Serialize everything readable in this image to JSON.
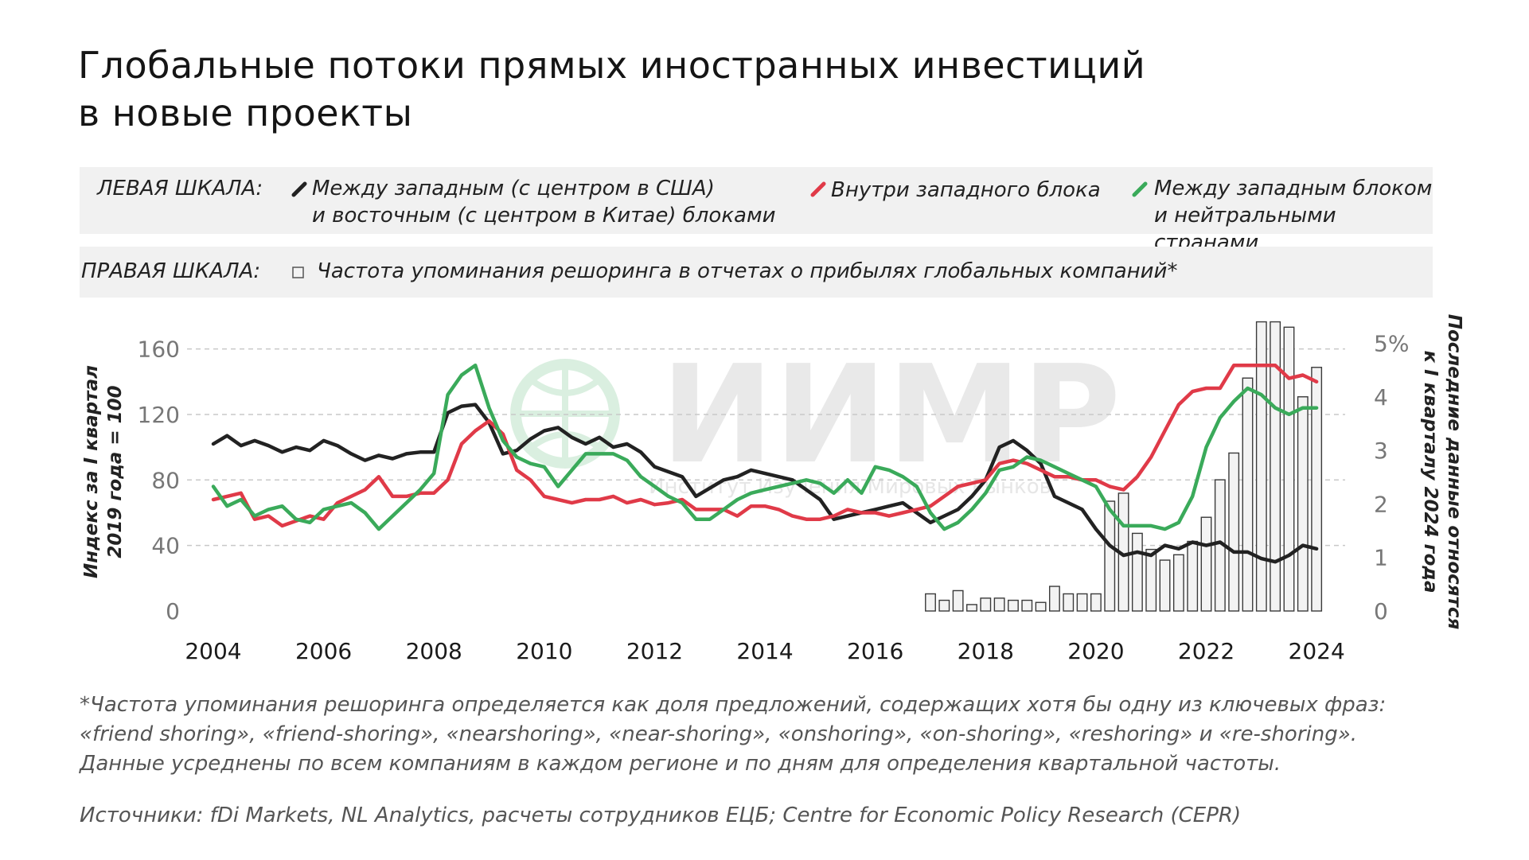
{
  "title": {
    "line1": "Глобальные потоки прямых иностранных инвестиций",
    "line2": "в новые проекты"
  },
  "legend": {
    "left_scale_label": "ЛЕВАЯ ШКАЛА:",
    "right_scale_label": "ПРАВАЯ ШКАЛА:",
    "items": [
      {
        "line1": "Между западным (с центром в США)",
        "line2": "и восточным (с центром в Китае) блоками",
        "color": "#222222"
      },
      {
        "line1": "Внутри западного блока",
        "line2": "",
        "color": "#e03a48"
      },
      {
        "line1": "Между западным блоком",
        "line2": "и нейтральными странами",
        "color": "#3aaa5a"
      }
    ],
    "bar_item": "Частота упоминания решоринга в отчетах о прибылях глобальных компаний*"
  },
  "watermark": {
    "text": "ИИМР",
    "subtext": "Институт Изучения Мировых Рынков"
  },
  "footnote": {
    "line1": "*Частота упоминания решоринга определяется как доля предложений, содержащих хотя бы одну из ключевых фраз:",
    "line2": "«friend shoring», «friend-shoring», «nearshoring», «near-shoring», «onshoring», «on-shoring», «reshoring» и «re-shoring».",
    "line3": "Данные усреднены по всем компаниям в каждом регионе и по дням для определения квартальной частоты."
  },
  "source": "Источники: fDi Markets, NL Analytics, расчеты сотрудников ЕЦБ; Centre for Economic Policy Research (CEPR)",
  "chart_data": {
    "type": "line",
    "x_ticks": [
      "2004",
      "2006",
      "2008",
      "2010",
      "2012",
      "2014",
      "2016",
      "2018",
      "2020",
      "2022",
      "2024"
    ],
    "xlim": [
      2004,
      2024.2
    ],
    "ylabel": "Индекс за I квартал 2019 года = 100",
    "ylim": [
      0,
      170
    ],
    "y_ticks": [
      0,
      40,
      80,
      120,
      160
    ],
    "y2label": "Последние данные относятся к I кварталу 2024 года",
    "y2lim": [
      0,
      5.2
    ],
    "y2_ticks": [
      "0",
      "1",
      "2",
      "3",
      "4",
      "5%"
    ],
    "grid": "horizontal-dashed",
    "series": [
      {
        "name": "Между западным (с центром в США) и восточным (с центром в Китае) блоками",
        "color": "#222222",
        "x": [
          2004,
          2004.25,
          2004.5,
          2004.75,
          2005,
          2005.25,
          2005.5,
          2005.75,
          2006,
          2006.25,
          2006.5,
          2006.75,
          2007,
          2007.25,
          2007.5,
          2007.75,
          2008,
          2008.25,
          2008.5,
          2008.75,
          2009,
          2009.25,
          2009.5,
          2009.75,
          2010,
          2010.25,
          2010.5,
          2010.75,
          2011,
          2011.25,
          2011.5,
          2011.75,
          2012,
          2012.25,
          2012.5,
          2012.75,
          2013,
          2013.25,
          2013.5,
          2013.75,
          2014,
          2014.25,
          2014.5,
          2014.75,
          2015,
          2015.25,
          2015.5,
          2015.75,
          2016,
          2016.25,
          2016.5,
          2016.75,
          2017,
          2017.25,
          2017.5,
          2017.75,
          2018,
          2018.25,
          2018.5,
          2018.75,
          2019,
          2019.25,
          2019.5,
          2019.75,
          2020,
          2020.25,
          2020.5,
          2020.75,
          2021,
          2021.25,
          2021.5,
          2021.75,
          2022,
          2022.25,
          2022.5,
          2022.75,
          2023,
          2023.25,
          2023.5,
          2023.75,
          2024
        ],
        "values": [
          102,
          107,
          101,
          104,
          101,
          97,
          100,
          98,
          104,
          101,
          96,
          92,
          95,
          93,
          96,
          97,
          97,
          121,
          125,
          126,
          115,
          96,
          98,
          105,
          110,
          112,
          106,
          102,
          106,
          100,
          102,
          97,
          88,
          85,
          82,
          70,
          75,
          80,
          82,
          86,
          84,
          82,
          80,
          74,
          68,
          56,
          58,
          60,
          62,
          64,
          66,
          60,
          54,
          58,
          62,
          70,
          80,
          100,
          104,
          98,
          90,
          70,
          66,
          62,
          50,
          40,
          34,
          36,
          34,
          40,
          38,
          42,
          40,
          42,
          36,
          36,
          32,
          30,
          34,
          40,
          38
        ]
      },
      {
        "name": "Внутри западного блока",
        "color": "#e03a48",
        "x": [
          2004,
          2004.25,
          2004.5,
          2004.75,
          2005,
          2005.25,
          2005.5,
          2005.75,
          2006,
          2006.25,
          2006.5,
          2006.75,
          2007,
          2007.25,
          2007.5,
          2007.75,
          2008,
          2008.25,
          2008.5,
          2008.75,
          2009,
          2009.25,
          2009.5,
          2009.75,
          2010,
          2010.25,
          2010.5,
          2010.75,
          2011,
          2011.25,
          2011.5,
          2011.75,
          2012,
          2012.25,
          2012.5,
          2012.75,
          2013,
          2013.25,
          2013.5,
          2013.75,
          2014,
          2014.25,
          2014.5,
          2014.75,
          2015,
          2015.25,
          2015.5,
          2015.75,
          2016,
          2016.25,
          2016.5,
          2016.75,
          2017,
          2017.25,
          2017.5,
          2017.75,
          2018,
          2018.25,
          2018.5,
          2018.75,
          2019,
          2019.25,
          2019.5,
          2019.75,
          2020,
          2020.25,
          2020.5,
          2020.75,
          2021,
          2021.25,
          2021.5,
          2021.75,
          2022,
          2022.25,
          2022.5,
          2022.75,
          2023,
          2023.25,
          2023.5,
          2023.75,
          2024
        ],
        "values": [
          68,
          70,
          72,
          56,
          58,
          52,
          55,
          58,
          56,
          66,
          70,
          74,
          82,
          70,
          70,
          72,
          72,
          80,
          102,
          110,
          116,
          108,
          86,
          80,
          70,
          68,
          66,
          68,
          68,
          70,
          66,
          68,
          65,
          66,
          68,
          62,
          62,
          62,
          58,
          64,
          64,
          62,
          58,
          56,
          56,
          58,
          62,
          60,
          60,
          58,
          60,
          62,
          64,
          70,
          76,
          78,
          80,
          90,
          92,
          90,
          86,
          82,
          82,
          80,
          80,
          76,
          74,
          82,
          94,
          110,
          126,
          134,
          136,
          136,
          150,
          150,
          150,
          150,
          142,
          144,
          140
        ]
      },
      {
        "name": "Между западным блоком и нейтральными странами",
        "color": "#3aaa5a",
        "x": [
          2004,
          2004.25,
          2004.5,
          2004.75,
          2005,
          2005.25,
          2005.5,
          2005.75,
          2006,
          2006.25,
          2006.5,
          2006.75,
          2007,
          2007.25,
          2007.5,
          2007.75,
          2008,
          2008.25,
          2008.5,
          2008.75,
          2009,
          2009.25,
          2009.5,
          2009.75,
          2010,
          2010.25,
          2010.5,
          2010.75,
          2011,
          2011.25,
          2011.5,
          2011.75,
          2012,
          2012.25,
          2012.5,
          2012.75,
          2013,
          2013.25,
          2013.5,
          2013.75,
          2014,
          2014.25,
          2014.5,
          2014.75,
          2015,
          2015.25,
          2015.5,
          2015.75,
          2016,
          2016.25,
          2016.5,
          2016.75,
          2017,
          2017.25,
          2017.5,
          2017.75,
          2018,
          2018.25,
          2018.5,
          2018.75,
          2019,
          2019.25,
          2019.5,
          2019.75,
          2020,
          2020.25,
          2020.5,
          2020.75,
          2021,
          2021.25,
          2021.5,
          2021.75,
          2022,
          2022.25,
          2022.5,
          2022.75,
          2023,
          2023.25,
          2023.5,
          2023.75,
          2024
        ],
        "values": [
          76,
          64,
          68,
          58,
          62,
          64,
          56,
          54,
          62,
          64,
          66,
          60,
          50,
          58,
          66,
          74,
          84,
          132,
          144,
          150,
          124,
          104,
          94,
          90,
          88,
          76,
          86,
          96,
          96,
          96,
          92,
          82,
          76,
          70,
          66,
          56,
          56,
          62,
          68,
          72,
          74,
          76,
          78,
          80,
          78,
          72,
          80,
          72,
          88,
          86,
          82,
          76,
          60,
          50,
          54,
          62,
          72,
          86,
          88,
          94,
          92,
          88,
          84,
          80,
          76,
          62,
          52,
          52,
          52,
          50,
          54,
          70,
          100,
          118,
          128,
          136,
          132,
          124,
          120,
          124,
          124
        ]
      }
    ],
    "bars": {
      "name": "Частота упоминания решоринга в отчетах о прибылях глобальных компаний*",
      "axis": "right",
      "x": [
        2017,
        2017.25,
        2017.5,
        2017.75,
        2018,
        2018.25,
        2018.5,
        2018.75,
        2019,
        2019.25,
        2019.5,
        2019.75,
        2020,
        2020.25,
        2020.5,
        2020.75,
        2021,
        2021.25,
        2021.5,
        2021.75,
        2022,
        2022.25,
        2022.5,
        2022.75,
        2023,
        2023.25,
        2023.5,
        2023.75,
        2024
      ],
      "values": [
        0.32,
        0.2,
        0.38,
        0.12,
        0.24,
        0.24,
        0.2,
        0.2,
        0.16,
        0.46,
        0.32,
        0.32,
        0.32,
        2.05,
        2.2,
        1.45,
        1.15,
        0.95,
        1.05,
        1.3,
        1.75,
        2.45,
        2.95,
        4.35,
        5.4,
        5.4,
        5.3,
        4.0,
        4.55
      ]
    }
  }
}
